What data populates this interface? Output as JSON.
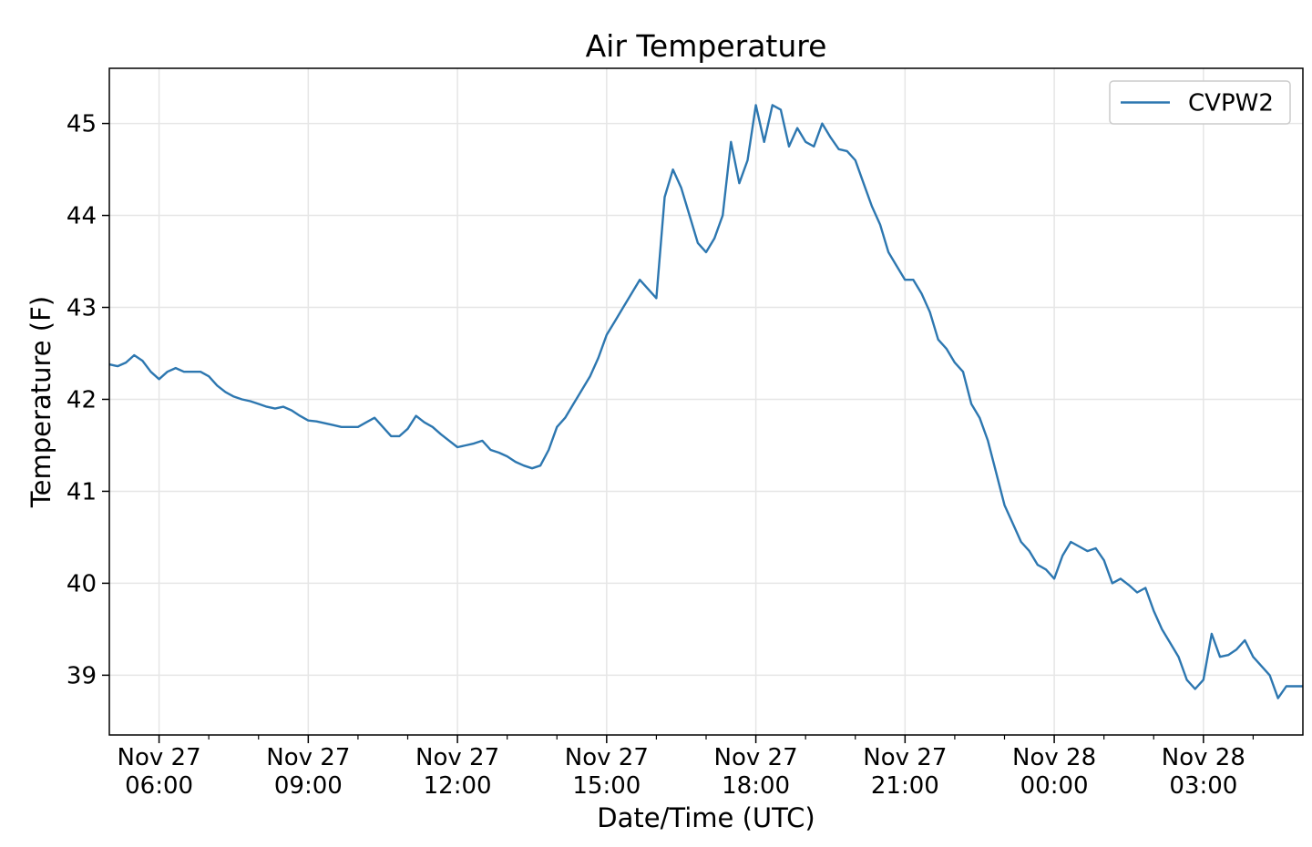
{
  "chart_data": {
    "type": "line",
    "title": "Air Temperature",
    "xlabel": "Date/Time (UTC)",
    "ylabel": "Temperature (F)",
    "ylim": [
      38.35,
      45.6
    ],
    "xlim": [
      "2018-11-27T05:00",
      "2018-11-28T05:00"
    ],
    "grid": true,
    "legend_position": "top-right",
    "y_ticks": [
      39,
      40,
      41,
      42,
      43,
      44,
      45
    ],
    "x_ticks": [
      {
        "t": "2018-11-27T06:00",
        "date": "Nov 27",
        "time": "06:00"
      },
      {
        "t": "2018-11-27T09:00",
        "date": "Nov 27",
        "time": "09:00"
      },
      {
        "t": "2018-11-27T12:00",
        "date": "Nov 27",
        "time": "12:00"
      },
      {
        "t": "2018-11-27T15:00",
        "date": "Nov 27",
        "time": "15:00"
      },
      {
        "t": "2018-11-27T18:00",
        "date": "Nov 27",
        "time": "18:00"
      },
      {
        "t": "2018-11-27T21:00",
        "date": "Nov 27",
        "time": "21:00"
      },
      {
        "t": "2018-11-28T00:00",
        "date": "Nov 28",
        "time": "00:00"
      },
      {
        "t": "2018-11-28T03:00",
        "date": "Nov 28",
        "time": "03:00"
      }
    ],
    "minor_x_ticks": [
      "2018-11-27T07:00",
      "2018-11-27T08:00",
      "2018-11-27T10:00",
      "2018-11-27T11:00",
      "2018-11-27T13:00",
      "2018-11-27T14:00",
      "2018-11-27T16:00",
      "2018-11-27T17:00",
      "2018-11-27T19:00",
      "2018-11-27T20:00",
      "2018-11-27T22:00",
      "2018-11-27T23:00",
      "2018-11-28T01:00",
      "2018-11-28T02:00",
      "2018-11-28T04:00"
    ],
    "series": [
      {
        "name": "CVPW2",
        "color": "#2d77b0",
        "points": [
          [
            "2018-11-27T05:00",
            42.38
          ],
          [
            "2018-11-27T05:10",
            42.36
          ],
          [
            "2018-11-27T05:20",
            42.4
          ],
          [
            "2018-11-27T05:30",
            42.48
          ],
          [
            "2018-11-27T05:40",
            42.42
          ],
          [
            "2018-11-27T05:50",
            42.3
          ],
          [
            "2018-11-27T06:00",
            42.22
          ],
          [
            "2018-11-27T06:10",
            42.3
          ],
          [
            "2018-11-27T06:20",
            42.34
          ],
          [
            "2018-11-27T06:30",
            42.3
          ],
          [
            "2018-11-27T06:40",
            42.3
          ],
          [
            "2018-11-27T06:50",
            42.3
          ],
          [
            "2018-11-27T07:00",
            42.25
          ],
          [
            "2018-11-27T07:10",
            42.15
          ],
          [
            "2018-11-27T07:20",
            42.08
          ],
          [
            "2018-11-27T07:30",
            42.03
          ],
          [
            "2018-11-27T07:40",
            42.0
          ],
          [
            "2018-11-27T07:50",
            41.98
          ],
          [
            "2018-11-27T08:00",
            41.95
          ],
          [
            "2018-11-27T08:10",
            41.92
          ],
          [
            "2018-11-27T08:20",
            41.9
          ],
          [
            "2018-11-27T08:30",
            41.92
          ],
          [
            "2018-11-27T08:40",
            41.88
          ],
          [
            "2018-11-27T08:50",
            41.82
          ],
          [
            "2018-11-27T09:00",
            41.77
          ],
          [
            "2018-11-27T09:10",
            41.76
          ],
          [
            "2018-11-27T09:20",
            41.74
          ],
          [
            "2018-11-27T09:30",
            41.72
          ],
          [
            "2018-11-27T09:40",
            41.7
          ],
          [
            "2018-11-27T09:50",
            41.7
          ],
          [
            "2018-11-27T10:00",
            41.7
          ],
          [
            "2018-11-27T10:10",
            41.75
          ],
          [
            "2018-11-27T10:20",
            41.8
          ],
          [
            "2018-11-27T10:30",
            41.7
          ],
          [
            "2018-11-27T10:40",
            41.6
          ],
          [
            "2018-11-27T10:50",
            41.6
          ],
          [
            "2018-11-27T11:00",
            41.68
          ],
          [
            "2018-11-27T11:10",
            41.82
          ],
          [
            "2018-11-27T11:20",
            41.75
          ],
          [
            "2018-11-27T11:30",
            41.7
          ],
          [
            "2018-11-27T11:40",
            41.62
          ],
          [
            "2018-11-27T11:50",
            41.55
          ],
          [
            "2018-11-27T12:00",
            41.48
          ],
          [
            "2018-11-27T12:10",
            41.5
          ],
          [
            "2018-11-27T12:20",
            41.52
          ],
          [
            "2018-11-27T12:30",
            41.55
          ],
          [
            "2018-11-27T12:40",
            41.45
          ],
          [
            "2018-11-27T12:50",
            41.42
          ],
          [
            "2018-11-27T13:00",
            41.38
          ],
          [
            "2018-11-27T13:10",
            41.32
          ],
          [
            "2018-11-27T13:20",
            41.28
          ],
          [
            "2018-11-27T13:30",
            41.25
          ],
          [
            "2018-11-27T13:40",
            41.28
          ],
          [
            "2018-11-27T13:50",
            41.45
          ],
          [
            "2018-11-27T14:00",
            41.7
          ],
          [
            "2018-11-27T14:10",
            41.8
          ],
          [
            "2018-11-27T14:20",
            41.95
          ],
          [
            "2018-11-27T14:30",
            42.1
          ],
          [
            "2018-11-27T14:40",
            42.25
          ],
          [
            "2018-11-27T14:50",
            42.45
          ],
          [
            "2018-11-27T15:00",
            42.7
          ],
          [
            "2018-11-27T15:10",
            42.85
          ],
          [
            "2018-11-27T15:20",
            43.0
          ],
          [
            "2018-11-27T15:30",
            43.15
          ],
          [
            "2018-11-27T15:40",
            43.3
          ],
          [
            "2018-11-27T15:50",
            43.2
          ],
          [
            "2018-11-27T16:00",
            43.1
          ],
          [
            "2018-11-27T16:10",
            44.2
          ],
          [
            "2018-11-27T16:20",
            44.5
          ],
          [
            "2018-11-27T16:30",
            44.3
          ],
          [
            "2018-11-27T16:40",
            44.0
          ],
          [
            "2018-11-27T16:50",
            43.7
          ],
          [
            "2018-11-27T17:00",
            43.6
          ],
          [
            "2018-11-27T17:10",
            43.75
          ],
          [
            "2018-11-27T17:20",
            44.0
          ],
          [
            "2018-11-27T17:30",
            44.8
          ],
          [
            "2018-11-27T17:40",
            44.35
          ],
          [
            "2018-11-27T17:50",
            44.6
          ],
          [
            "2018-11-27T18:00",
            45.2
          ],
          [
            "2018-11-27T18:10",
            44.8
          ],
          [
            "2018-11-27T18:20",
            45.2
          ],
          [
            "2018-11-27T18:30",
            45.15
          ],
          [
            "2018-11-27T18:40",
            44.75
          ],
          [
            "2018-11-27T18:50",
            44.95
          ],
          [
            "2018-11-27T19:00",
            44.8
          ],
          [
            "2018-11-27T19:10",
            44.75
          ],
          [
            "2018-11-27T19:20",
            45.0
          ],
          [
            "2018-11-27T19:30",
            44.85
          ],
          [
            "2018-11-27T19:40",
            44.72
          ],
          [
            "2018-11-27T19:50",
            44.7
          ],
          [
            "2018-11-27T20:00",
            44.6
          ],
          [
            "2018-11-27T20:10",
            44.35
          ],
          [
            "2018-11-27T20:20",
            44.1
          ],
          [
            "2018-11-27T20:30",
            43.9
          ],
          [
            "2018-11-27T20:40",
            43.6
          ],
          [
            "2018-11-27T20:50",
            43.45
          ],
          [
            "2018-11-27T21:00",
            43.3
          ],
          [
            "2018-11-27T21:10",
            43.3
          ],
          [
            "2018-11-27T21:20",
            43.15
          ],
          [
            "2018-11-27T21:30",
            42.95
          ],
          [
            "2018-11-27T21:40",
            42.65
          ],
          [
            "2018-11-27T21:50",
            42.55
          ],
          [
            "2018-11-27T22:00",
            42.4
          ],
          [
            "2018-11-27T22:10",
            42.3
          ],
          [
            "2018-11-27T22:20",
            41.95
          ],
          [
            "2018-11-27T22:30",
            41.8
          ],
          [
            "2018-11-27T22:40",
            41.55
          ],
          [
            "2018-11-27T22:50",
            41.2
          ],
          [
            "2018-11-27T23:00",
            40.85
          ],
          [
            "2018-11-27T23:10",
            40.65
          ],
          [
            "2018-11-27T23:20",
            40.45
          ],
          [
            "2018-11-27T23:30",
            40.35
          ],
          [
            "2018-11-27T23:40",
            40.2
          ],
          [
            "2018-11-27T23:50",
            40.15
          ],
          [
            "2018-11-28T00:00",
            40.05
          ],
          [
            "2018-11-28T00:10",
            40.3
          ],
          [
            "2018-11-28T00:20",
            40.45
          ],
          [
            "2018-11-28T00:30",
            40.4
          ],
          [
            "2018-11-28T00:40",
            40.35
          ],
          [
            "2018-11-28T00:50",
            40.38
          ],
          [
            "2018-11-28T01:00",
            40.25
          ],
          [
            "2018-11-28T01:10",
            40.0
          ],
          [
            "2018-11-28T01:20",
            40.05
          ],
          [
            "2018-11-28T01:30",
            39.98
          ],
          [
            "2018-11-28T01:40",
            39.9
          ],
          [
            "2018-11-28T01:50",
            39.95
          ],
          [
            "2018-11-28T02:00",
            39.7
          ],
          [
            "2018-11-28T02:10",
            39.5
          ],
          [
            "2018-11-28T02:20",
            39.35
          ],
          [
            "2018-11-28T02:30",
            39.2
          ],
          [
            "2018-11-28T02:40",
            38.95
          ],
          [
            "2018-11-28T02:50",
            38.85
          ],
          [
            "2018-11-28T03:00",
            38.95
          ],
          [
            "2018-11-28T03:10",
            39.45
          ],
          [
            "2018-11-28T03:20",
            39.2
          ],
          [
            "2018-11-28T03:30",
            39.22
          ],
          [
            "2018-11-28T03:40",
            39.28
          ],
          [
            "2018-11-28T03:50",
            39.38
          ],
          [
            "2018-11-28T04:00",
            39.2
          ],
          [
            "2018-11-28T04:10",
            39.1
          ],
          [
            "2018-11-28T04:20",
            39.0
          ],
          [
            "2018-11-28T04:30",
            38.75
          ],
          [
            "2018-11-28T04:40",
            38.88
          ],
          [
            "2018-11-28T05:00",
            38.88
          ]
        ]
      }
    ]
  }
}
